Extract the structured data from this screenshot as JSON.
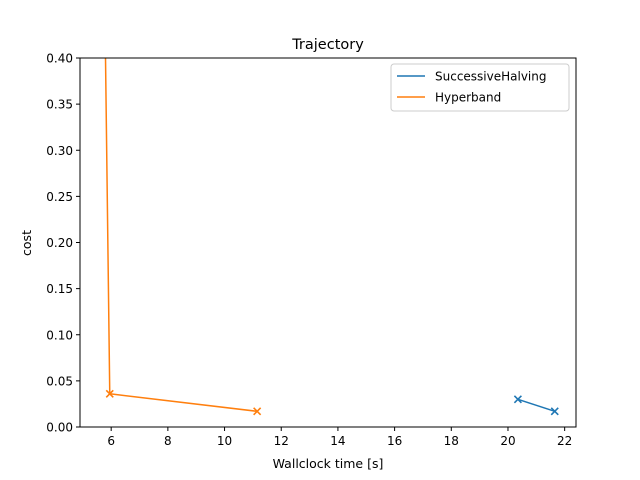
{
  "chart_data": {
    "type": "line",
    "title": "Trajectory",
    "xlabel": "Wallclock time [s]",
    "ylabel": "cost",
    "xlim": [
      4.9,
      22.4
    ],
    "ylim": [
      0,
      0.4
    ],
    "xticks": [
      6,
      8,
      10,
      12,
      14,
      16,
      18,
      20,
      22
    ],
    "yticks": [
      0.0,
      0.05,
      0.1,
      0.15,
      0.2,
      0.25,
      0.3,
      0.35,
      0.4
    ],
    "xtick_labels": [
      "6",
      "8",
      "10",
      "12",
      "14",
      "16",
      "18",
      "20",
      "22"
    ],
    "ytick_labels": [
      "0.00",
      "0.05",
      "0.10",
      "0.15",
      "0.20",
      "0.25",
      "0.30",
      "0.35",
      "0.40"
    ],
    "grid": false,
    "legend_position": "top-right",
    "series": [
      {
        "name": "SuccessiveHalving",
        "color": "#1f77b4",
        "x": [
          20.35,
          21.65
        ],
        "y": [
          0.03,
          0.017
        ],
        "marker_x": [
          20.35,
          21.65
        ],
        "marker_y": [
          0.03,
          0.017
        ]
      },
      {
        "name": "Hyperband",
        "color": "#ff7f0e",
        "x": [
          5.8,
          5.95,
          11.15
        ],
        "y": [
          0.4,
          0.036,
          0.017
        ],
        "marker_x": [
          5.95,
          11.15
        ],
        "marker_y": [
          0.036,
          0.017
        ]
      }
    ]
  }
}
